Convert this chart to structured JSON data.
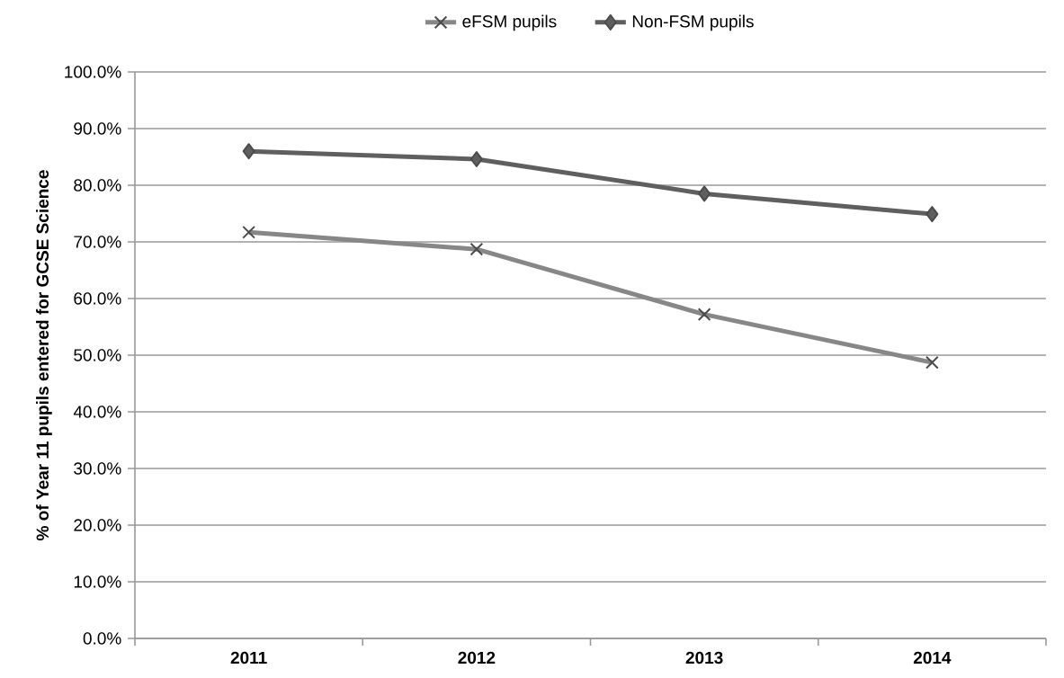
{
  "chart_data": {
    "type": "line",
    "categories": [
      "2011",
      "2012",
      "2013",
      "2014"
    ],
    "ylabel": "% of Year 11 pupils entered for GCSE Science",
    "series": [
      {
        "name": "eFSM pupils",
        "color": "#878787",
        "marker": "cross",
        "values": [
          71.7,
          68.7,
          57.2,
          48.7
        ]
      },
      {
        "name": "Non-FSM pupils",
        "color": "#5f5f5f",
        "marker": "diamond",
        "values": [
          86.0,
          84.6,
          78.5,
          74.9
        ]
      }
    ],
    "ylim": [
      0,
      100
    ],
    "yticks": [
      {
        "value": 0,
        "label": "0.0%"
      },
      {
        "value": 10,
        "label": "10.0%"
      },
      {
        "value": 20,
        "label": "20.0%"
      },
      {
        "value": 30,
        "label": "30.0%"
      },
      {
        "value": 40,
        "label": "40.0%"
      },
      {
        "value": 50,
        "label": "50.0%"
      },
      {
        "value": 60,
        "label": "60.0%"
      },
      {
        "value": 70,
        "label": "70.0%"
      },
      {
        "value": 80,
        "label": "80.0%"
      },
      {
        "value": 90,
        "label": "90.0%"
      },
      {
        "value": 100,
        "label": "100.0%"
      }
    ],
    "grid": "y",
    "legend": "top",
    "line_style": "solid"
  }
}
